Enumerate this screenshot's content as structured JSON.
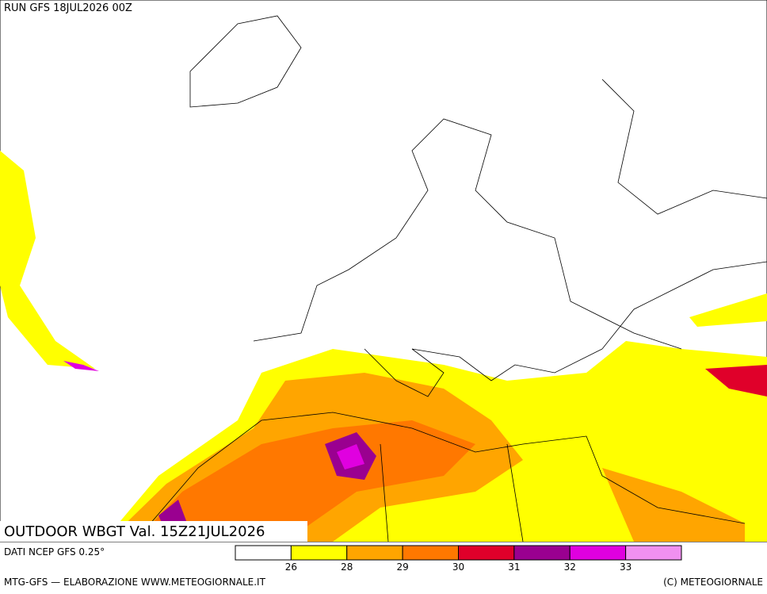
{
  "header": {
    "run": "RUN GFS 18JUL2026 00Z"
  },
  "map": {
    "title": "OUTDOOR WBGT Val. 15Z21JUL2026"
  },
  "legend": {
    "source": "DATI NCEP GFS 0.25°",
    "colors": [
      "#ffffff",
      "#ffff00",
      "#ffa500",
      "#ff7800",
      "#e0002a",
      "#9a0090",
      "#e000e0",
      "#f090f0"
    ],
    "ticks": [
      26,
      28,
      29,
      30,
      31,
      32,
      33
    ]
  },
  "footer": {
    "left": "MTG-GFS — ELABORAZIONE WWW.METEOGIORNALE.IT",
    "right": "(C) METEOGIORNALE"
  }
}
